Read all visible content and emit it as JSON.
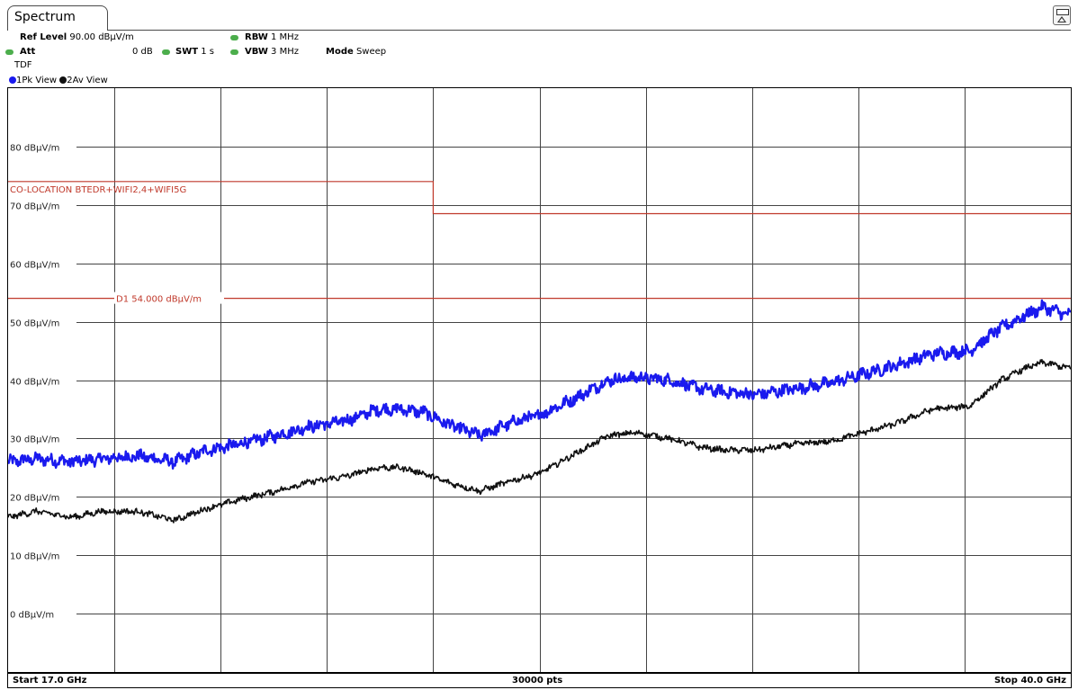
{
  "tab": {
    "label": "Spectrum"
  },
  "settings": {
    "ref_level_label": "Ref Level",
    "ref_level_value": "90.00 dBµV/m",
    "att_label": "Att",
    "att_value": "0 dB",
    "swt_label": "SWT",
    "swt_value": "1 s",
    "rbw_label": "RBW",
    "rbw_value": "1 MHz",
    "vbw_label": "VBW",
    "vbw_value": "3 MHz",
    "mode_label": "Mode",
    "mode_value": "Sweep",
    "tdf": "TDF"
  },
  "traces": [
    {
      "number": "1",
      "label": "Pk View",
      "color": "#1a1aee"
    },
    {
      "number": "2",
      "label": "Av View",
      "color": "#111111"
    }
  ],
  "footer": {
    "start": "Start 17.0 GHz",
    "points": "30000 pts",
    "stop": "Stop 40.0 GHz"
  },
  "chart_data": {
    "type": "line",
    "xlim": [
      17.0,
      40.0
    ],
    "x_unit": "GHz",
    "ylim": [
      -10,
      90
    ],
    "y_unit": "dBµV/m",
    "yticks": [
      {
        "value": 80,
        "label": "80 dBµV/m"
      },
      {
        "value": 70,
        "label": "70 dBµV/m"
      },
      {
        "value": 60,
        "label": "60 dBµV/m"
      },
      {
        "value": 50,
        "label": "50 dBµV/m"
      },
      {
        "value": 40,
        "label": "40 dBµV/m"
      },
      {
        "value": 30,
        "label": "30 dBµV/m"
      },
      {
        "value": 20,
        "label": "20 dBµV/m"
      },
      {
        "value": 10,
        "label": "10 dBµV/m"
      },
      {
        "value": 0,
        "label": "0 dBµV/m"
      }
    ],
    "x_divisions": 10,
    "grid": true,
    "limit_line": {
      "label": "CO-LOCATION BTEDR+WIFI2,4+WIFI5G",
      "color": "#c0392b",
      "points": [
        [
          17.0,
          74.0
        ],
        [
          26.2,
          74.0
        ],
        [
          26.2,
          68.5
        ],
        [
          40.0,
          68.5
        ]
      ]
    },
    "display_line": {
      "label": "D1  54.000 dBµV/m",
      "value": 54.0,
      "color": "#c0392b"
    },
    "series": [
      {
        "color": "#1a1aee",
        "noise": 0.9,
        "x": [
          17.0,
          17.6,
          18.4,
          19.0,
          19.8,
          20.6,
          21.3,
          22.0,
          22.8,
          23.5,
          24.3,
          25.0,
          25.5,
          26.0,
          26.5,
          27.2,
          28.0,
          28.5,
          29.3,
          30.0,
          30.6,
          31.3,
          32.0,
          32.5,
          33.2,
          34.0,
          34.8,
          35.5,
          36.2,
          37.0,
          37.8,
          38.5,
          39.0,
          39.4,
          40.0
        ],
        "y": [
          26,
          26.5,
          26,
          26.5,
          27,
          26,
          28,
          29,
          30.5,
          32,
          33,
          35,
          35,
          34.5,
          32.5,
          30.5,
          33,
          34,
          37,
          40,
          40.5,
          40,
          38.5,
          38,
          37.5,
          38.5,
          39.5,
          41,
          42.5,
          44.5,
          45,
          49,
          51,
          52.5,
          51
        ]
      },
      {
        "color": "#111111",
        "noise": 0.45,
        "x": [
          17.0,
          17.6,
          18.4,
          19.0,
          19.8,
          20.6,
          21.3,
          22.0,
          22.8,
          23.5,
          24.3,
          25.0,
          25.5,
          26.0,
          26.5,
          27.2,
          28.0,
          28.5,
          29.3,
          30.0,
          30.6,
          31.3,
          32.0,
          32.5,
          33.2,
          34.0,
          34.8,
          35.5,
          36.2,
          37.0,
          37.8,
          38.5,
          39.0,
          39.4,
          40.0
        ],
        "y": [
          16.5,
          17.5,
          16.5,
          17.5,
          17.5,
          16,
          18,
          19.5,
          21,
          22.5,
          23.5,
          25,
          25,
          24,
          22.5,
          21,
          23,
          24,
          27.5,
          30.5,
          31,
          30,
          28.5,
          28,
          28,
          29,
          29.5,
          31,
          32.5,
          35,
          35.5,
          40,
          42,
          43,
          42
        ]
      }
    ]
  }
}
